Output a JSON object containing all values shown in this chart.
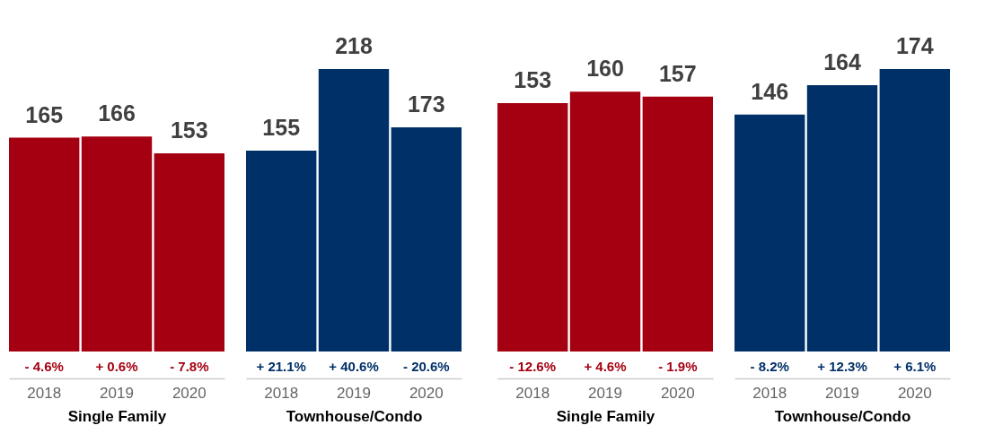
{
  "chart_data": [
    {
      "type": "bar",
      "categories": [
        "2018",
        "2019",
        "2020"
      ],
      "values": [
        165,
        166,
        153
      ],
      "color": "#a50011",
      "xlabel": "Single Family",
      "data_labels": true,
      "annotations": [
        "- 4.6%",
        "+ 0.6%",
        "- 7.8%"
      ]
    },
    {
      "type": "bar",
      "categories": [
        "2018",
        "2019",
        "2020"
      ],
      "values": [
        155,
        218,
        173
      ],
      "color": "#003068",
      "xlabel": "Townhouse/Condo",
      "data_labels": true,
      "annotations": [
        "+ 21.1%",
        "+ 40.6%",
        "- 20.6%"
      ]
    },
    {
      "type": "bar",
      "categories": [
        "2018",
        "2019",
        "2020"
      ],
      "values": [
        153,
        160,
        157
      ],
      "color": "#a50011",
      "xlabel": "Single Family",
      "data_labels": true,
      "annotations": [
        "- 12.6%",
        "+ 4.6%",
        "- 1.9%"
      ]
    },
    {
      "type": "bar",
      "categories": [
        "2018",
        "2019",
        "2020"
      ],
      "values": [
        146,
        164,
        174
      ],
      "color": "#003068",
      "xlabel": "Townhouse/Condo",
      "data_labels": true,
      "annotations": [
        "- 8.2%",
        "+ 12.3%",
        "+ 6.1%"
      ]
    }
  ]
}
